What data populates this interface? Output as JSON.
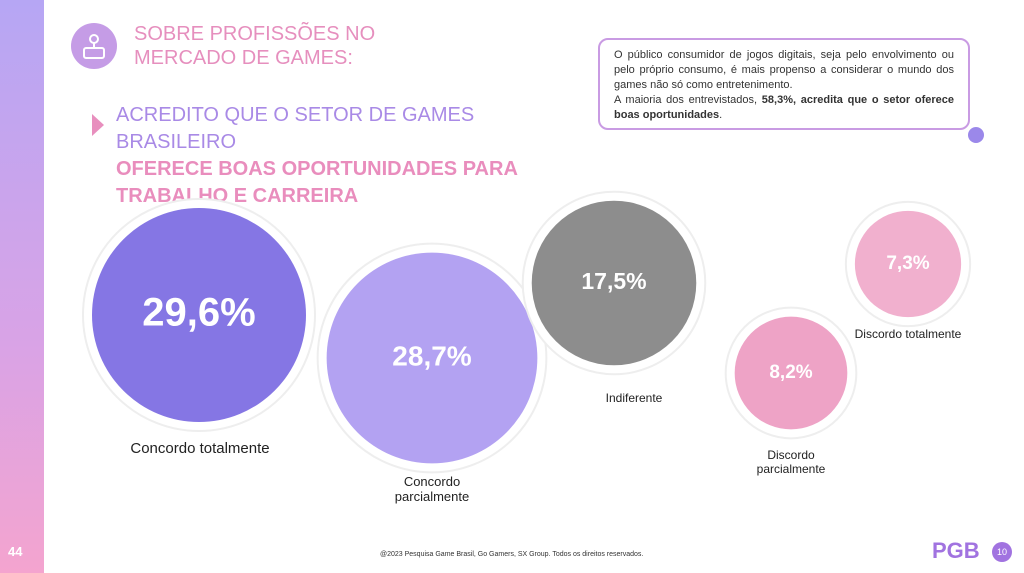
{
  "header": {
    "title_line_1": "SOBRE PROFISSÕES NO",
    "title_line_2": "MERCADO DE GAMES:"
  },
  "headline": {
    "light": "ACREDITO QUE O SETOR DE GAMES BRASILEIRO",
    "bold": "OFERECE BOAS OPORTUNIDADES PARA TRABALHO E CARREIRA"
  },
  "callout": {
    "text_1": "O público consumidor de jogos digitais, seja pelo envolvimento ou pelo próprio consumo,  é mais propenso a considerar o mundo dos games não só como entretenimento.",
    "text_2": "A maioria dos entrevistados, ",
    "bold": "58,3%, acredita que o setor oferece boas oportunidades",
    "text_3": "."
  },
  "chart_data": {
    "type": "bubble",
    "categories": [
      "Concordo totalmente",
      "Concordo parcialmente",
      "Indiferente",
      "Discordo parcialmente",
      "Discordo totalmente"
    ],
    "values": [
      29.6,
      28.7,
      17.5,
      8.2,
      7.3
    ],
    "value_labels": [
      "29,6%",
      "28,7%",
      "17,5%",
      "8,2%",
      "7,3%"
    ],
    "colors": [
      "#8576e4",
      "#b3a2f2",
      "#8d8d8d",
      "#eea3c6",
      "#f1b0ce"
    ]
  },
  "footer": {
    "copyright": "@2023 Pesquisa Game Brasil, Go Gamers, SX Group. Todos os direitos reservados.",
    "page_number": "44",
    "logo": "PGB",
    "badge": "10"
  }
}
